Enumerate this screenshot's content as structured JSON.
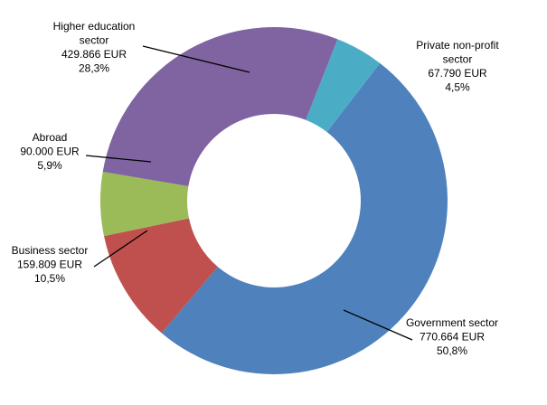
{
  "chart_data": {
    "type": "pie",
    "donut": true,
    "legend": "none",
    "slices": [
      {
        "key": "government",
        "label_lines": [
          "Government sector",
          "770.664 EUR",
          "50,8%"
        ],
        "value": 770664,
        "percent": 50.8,
        "color": "#4F81BD"
      },
      {
        "key": "business",
        "label_lines": [
          "Business sector",
          "159.809 EUR",
          "10,5%"
        ],
        "value": 159809,
        "percent": 10.5,
        "color": "#C0504D"
      },
      {
        "key": "abroad",
        "label_lines": [
          "Abroad",
          "90.000 EUR",
          "5,9%"
        ],
        "value": 90000,
        "percent": 5.9,
        "color": "#9BBB59"
      },
      {
        "key": "higher-education",
        "label_lines": [
          "Higher education",
          "sector",
          "429.866 EUR",
          "28,3%"
        ],
        "value": 429866,
        "percent": 28.3,
        "color": "#8064A2"
      },
      {
        "key": "private-non-profit",
        "label_lines": [
          "Private non-profit",
          "sector",
          "67.790 EUR",
          "4,5%"
        ],
        "value": 67790,
        "percent": 4.5,
        "color": "#4BACC6"
      }
    ]
  }
}
